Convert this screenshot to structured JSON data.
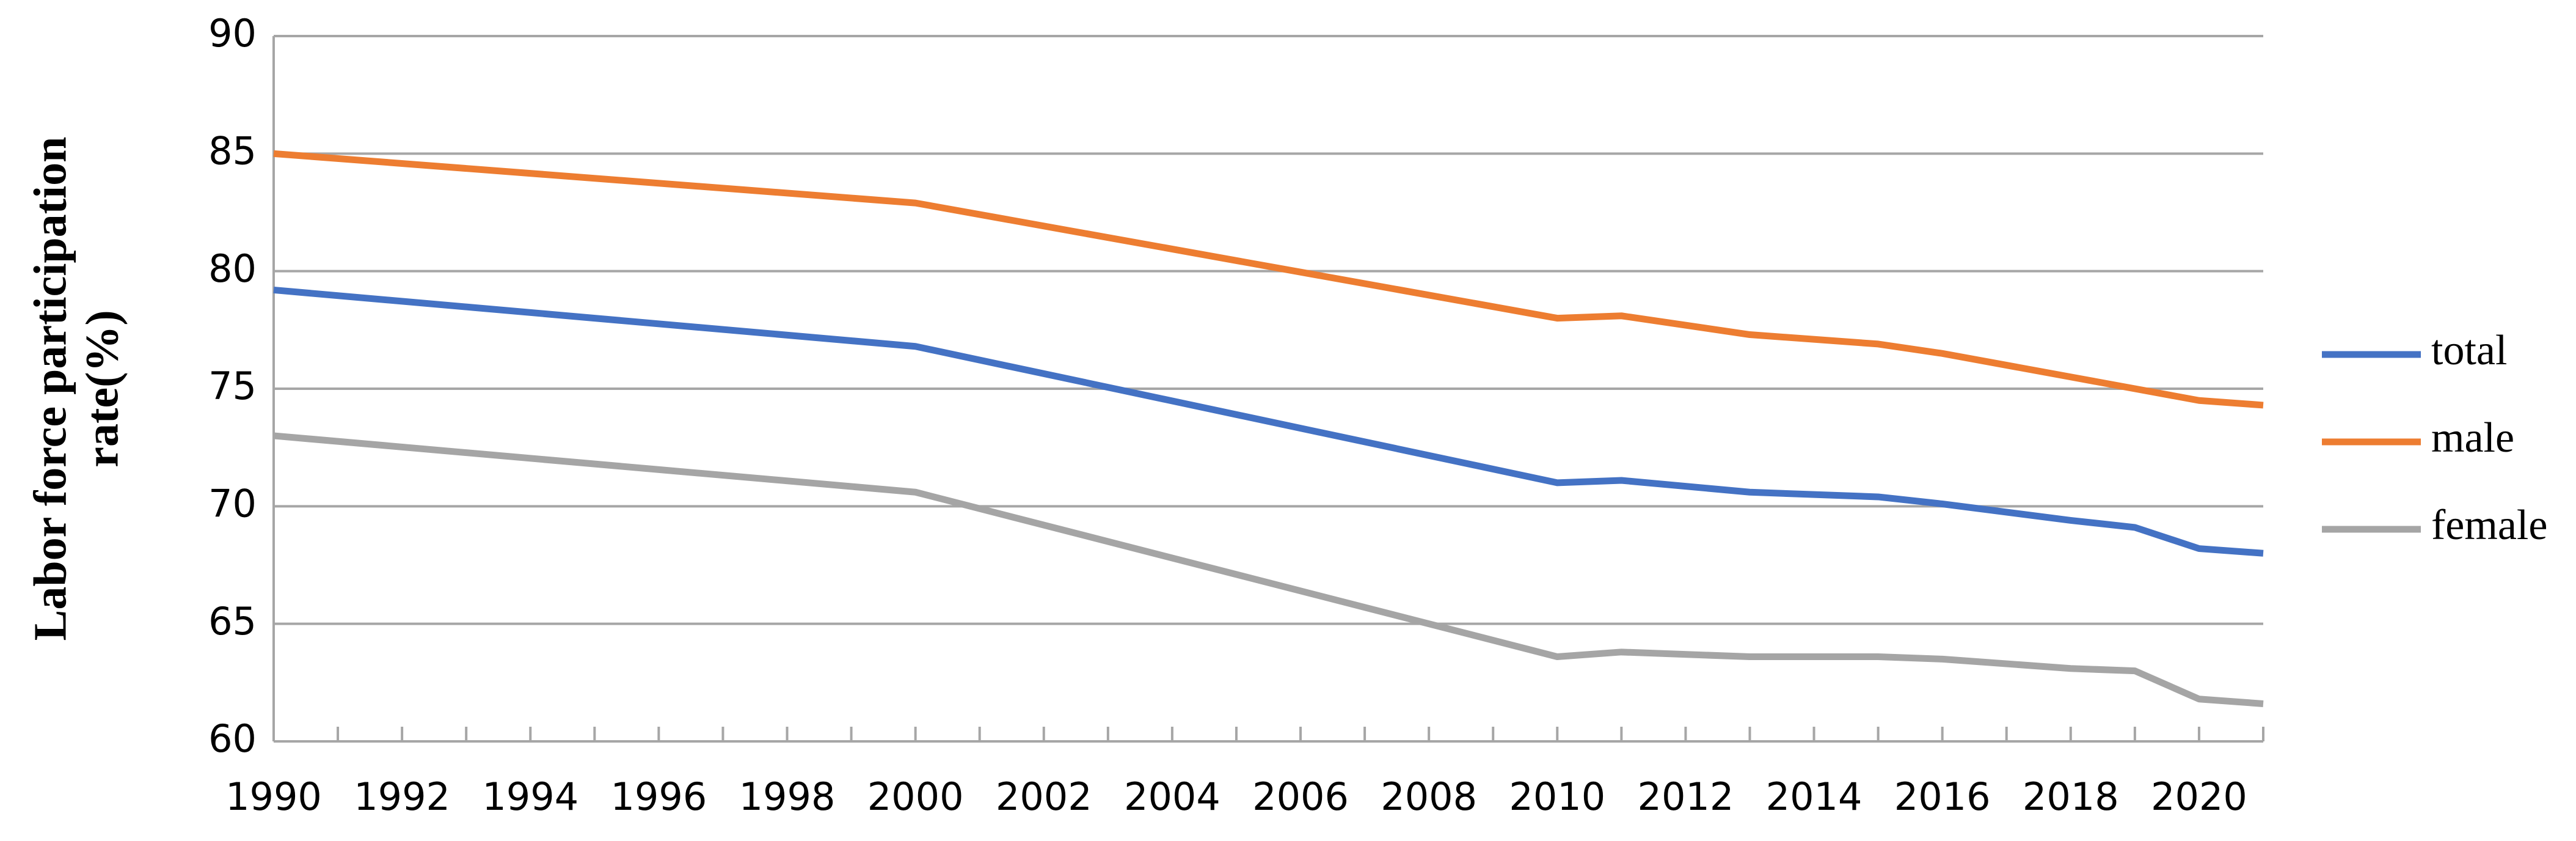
{
  "chart_data": {
    "type": "line",
    "y_label": [
      "Labor force participation",
      "rate(%)"
    ],
    "x": [
      1990,
      2000,
      2010,
      2011,
      2013,
      2015,
      2016,
      2018,
      2019,
      2020,
      2021
    ],
    "series": [
      {
        "name": "total",
        "color": "#4472c4",
        "values": [
          79.2,
          76.8,
          71.0,
          71.1,
          70.6,
          70.4,
          70.1,
          69.4,
          69.1,
          68.2,
          68.0
        ]
      },
      {
        "name": "male",
        "color": "#ed7d31",
        "values": [
          85.0,
          82.9,
          78.0,
          78.1,
          77.3,
          76.9,
          76.5,
          75.5,
          75.0,
          74.5,
          74.3
        ]
      },
      {
        "name": "female",
        "color": "#a5a5a5",
        "values": [
          73.0,
          70.6,
          63.6,
          63.8,
          63.6,
          63.6,
          63.5,
          63.1,
          63.0,
          61.8,
          61.6
        ]
      }
    ],
    "xlim": [
      1990,
      2021
    ],
    "xticks": [
      1990,
      1992,
      1994,
      1996,
      1998,
      2000,
      2002,
      2004,
      2006,
      2008,
      2010,
      2012,
      2014,
      2016,
      2018,
      2020
    ],
    "ylim": [
      60,
      90
    ],
    "yticks": [
      60,
      65,
      70,
      75,
      80,
      85,
      90
    ],
    "grid": true,
    "legend": "right"
  }
}
